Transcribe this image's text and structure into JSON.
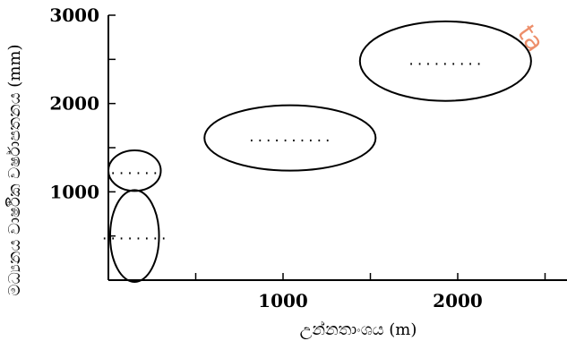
{
  "figure": {
    "x_axis": {
      "label": "උන්නතාංශය (m)",
      "ticks": [
        {
          "value": 500,
          "label": ""
        },
        {
          "value": 1000,
          "label": "1000"
        },
        {
          "value": 1500,
          "label": ""
        },
        {
          "value": 2000,
          "label": "2000"
        },
        {
          "value": 2500,
          "label": ""
        }
      ],
      "range": [
        0,
        2600
      ]
    },
    "y_axis": {
      "label": "මධ්‍යනය වාර්ෂික වර්ෂාපතනය (mm)",
      "ticks": [
        {
          "value": 500,
          "label": ""
        },
        {
          "value": 1000,
          "label": "1000"
        },
        {
          "value": 1500,
          "label": ""
        },
        {
          "value": 2000,
          "label": "2000"
        },
        {
          "value": 2500,
          "label": ""
        },
        {
          "value": 3000,
          "label": "3000"
        }
      ],
      "range": [
        0,
        3000
      ]
    },
    "zones": [
      {
        "id": "zone-low-dry",
        "cx": 150,
        "cy": 500,
        "rx": 140,
        "ry": 520,
        "blank": "........"
      },
      {
        "id": "zone-low-small",
        "cx": 150,
        "cy": 1240,
        "rx": 150,
        "ry": 230,
        "blank": "......"
      },
      {
        "id": "zone-mid",
        "cx": 1040,
        "cy": 1610,
        "rx": 490,
        "ry": 370,
        "blank": ".........."
      },
      {
        "id": "zone-high",
        "cx": 1930,
        "cy": 2480,
        "rx": 490,
        "ry": 450,
        "blank": "........."
      }
    ],
    "watermark": "ta"
  }
}
